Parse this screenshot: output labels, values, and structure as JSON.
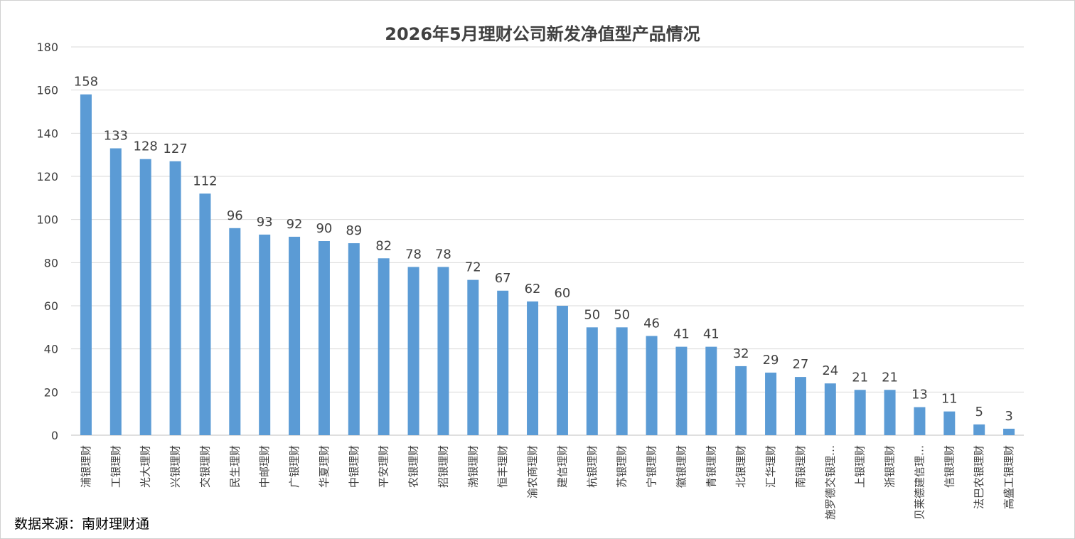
{
  "source_note": "数据来源：南财理财通",
  "chart_data": {
    "type": "bar",
    "title": "2026年5月理财公司新发净值型产品情况",
    "xlabel": "",
    "ylabel": "",
    "ylim": [
      0,
      180
    ],
    "yticks": [
      0,
      20,
      40,
      60,
      80,
      100,
      120,
      140,
      160,
      180
    ],
    "grid": true,
    "legend": "none",
    "bar_color": "#5b9bd5",
    "categories": [
      "浦银理财",
      "工银理财",
      "光大理财",
      "兴银理财",
      "交银理财",
      "民生理财",
      "中邮理财",
      "广银理财",
      "华夏理财",
      "中银理财",
      "平安理财",
      "农银理财",
      "招银理财",
      "渤银理财",
      "恒丰理财",
      "渝农商理财",
      "建信理财",
      "杭银理财",
      "苏银理财",
      "宁银理财",
      "徽银理财",
      "青银理财",
      "北银理财",
      "汇华理财",
      "南银理财",
      "施罗德交银理…",
      "上银理财",
      "浙银理财",
      "贝莱德建信理…",
      "信银理财",
      "法巴农银理财",
      "高盛工银理财"
    ],
    "values": [
      158,
      133,
      128,
      127,
      112,
      96,
      93,
      92,
      90,
      89,
      82,
      78,
      78,
      72,
      67,
      62,
      60,
      50,
      50,
      46,
      41,
      41,
      32,
      29,
      27,
      24,
      21,
      21,
      13,
      11,
      5,
      3
    ]
  }
}
